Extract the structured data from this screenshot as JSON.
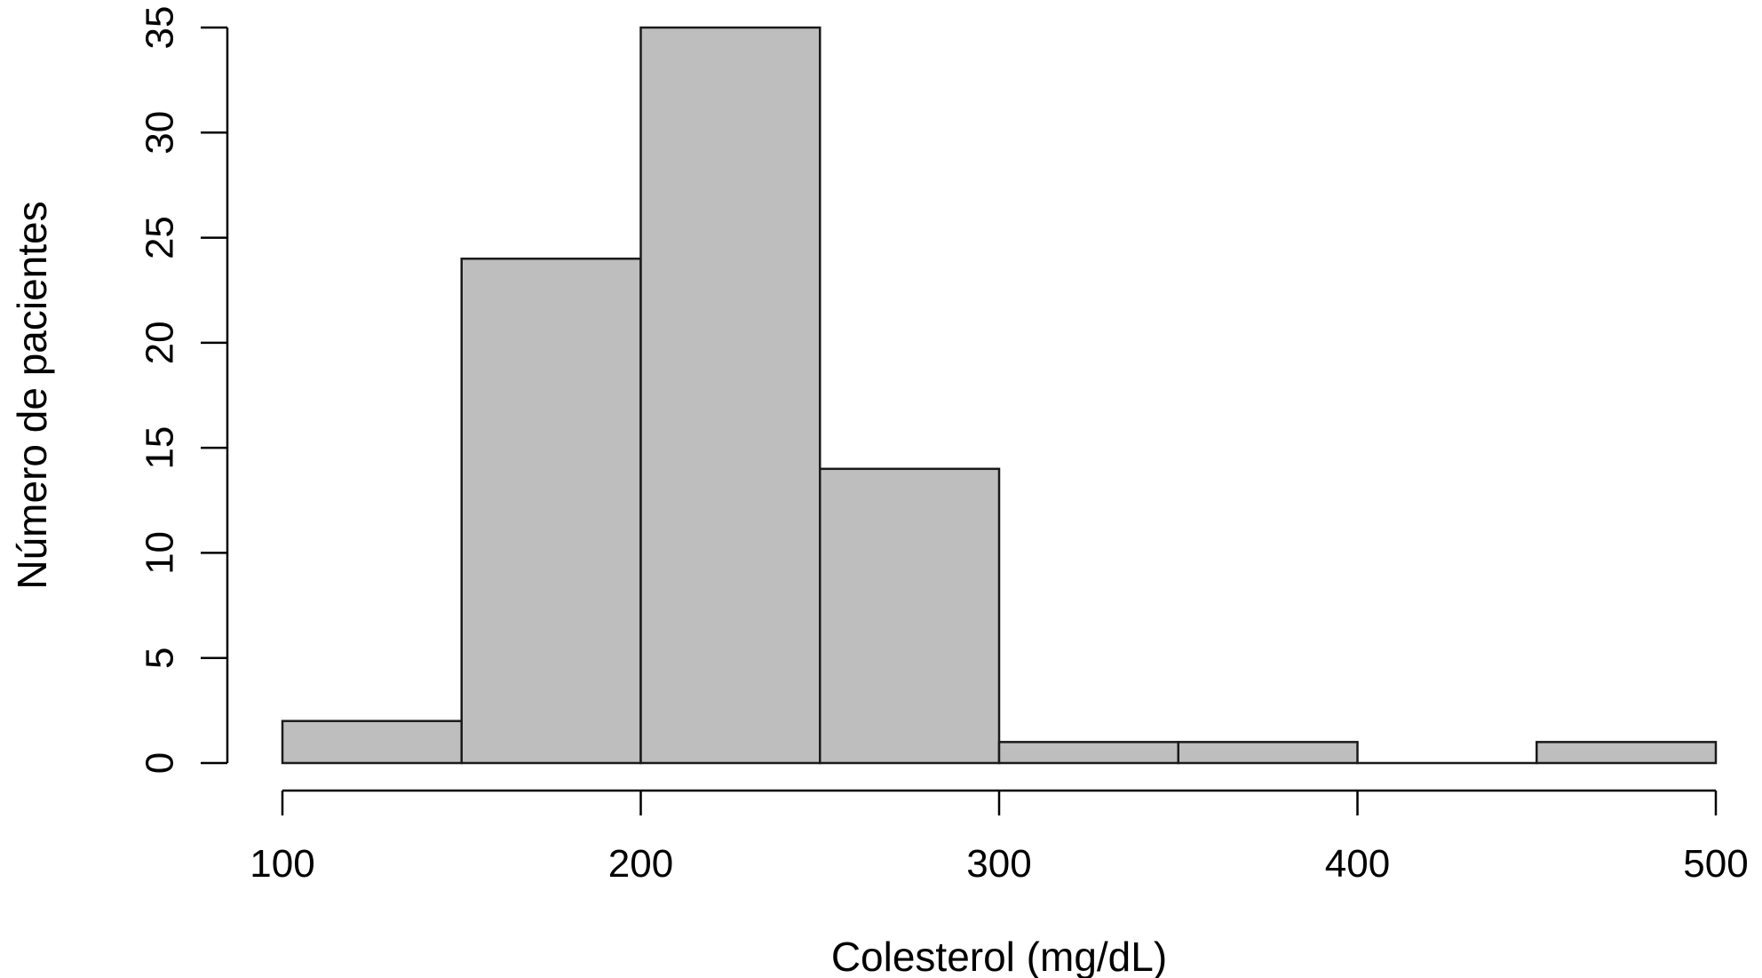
{
  "chart_data": {
    "type": "bar",
    "xlabel": "Colesterol (mg/dL)",
    "ylabel": "Número de pacientes",
    "bins": [
      {
        "start": 100,
        "end": 150,
        "count": 2
      },
      {
        "start": 150,
        "end": 200,
        "count": 24
      },
      {
        "start": 200,
        "end": 250,
        "count": 35
      },
      {
        "start": 250,
        "end": 300,
        "count": 14
      },
      {
        "start": 300,
        "end": 350,
        "count": 1
      },
      {
        "start": 350,
        "end": 400,
        "count": 1
      },
      {
        "start": 400,
        "end": 450,
        "count": 0
      },
      {
        "start": 450,
        "end": 500,
        "count": 1
      }
    ],
    "xlim": [
      100,
      500
    ],
    "ylim": [
      0,
      35
    ],
    "x_ticks": [
      "100",
      "200",
      "300",
      "400",
      "500"
    ],
    "y_ticks": [
      "0",
      "5",
      "10",
      "15",
      "20",
      "25",
      "30",
      "35"
    ],
    "bar_color": "#bebebe",
    "edge_color": "#1a1a1a",
    "grid": false
  }
}
